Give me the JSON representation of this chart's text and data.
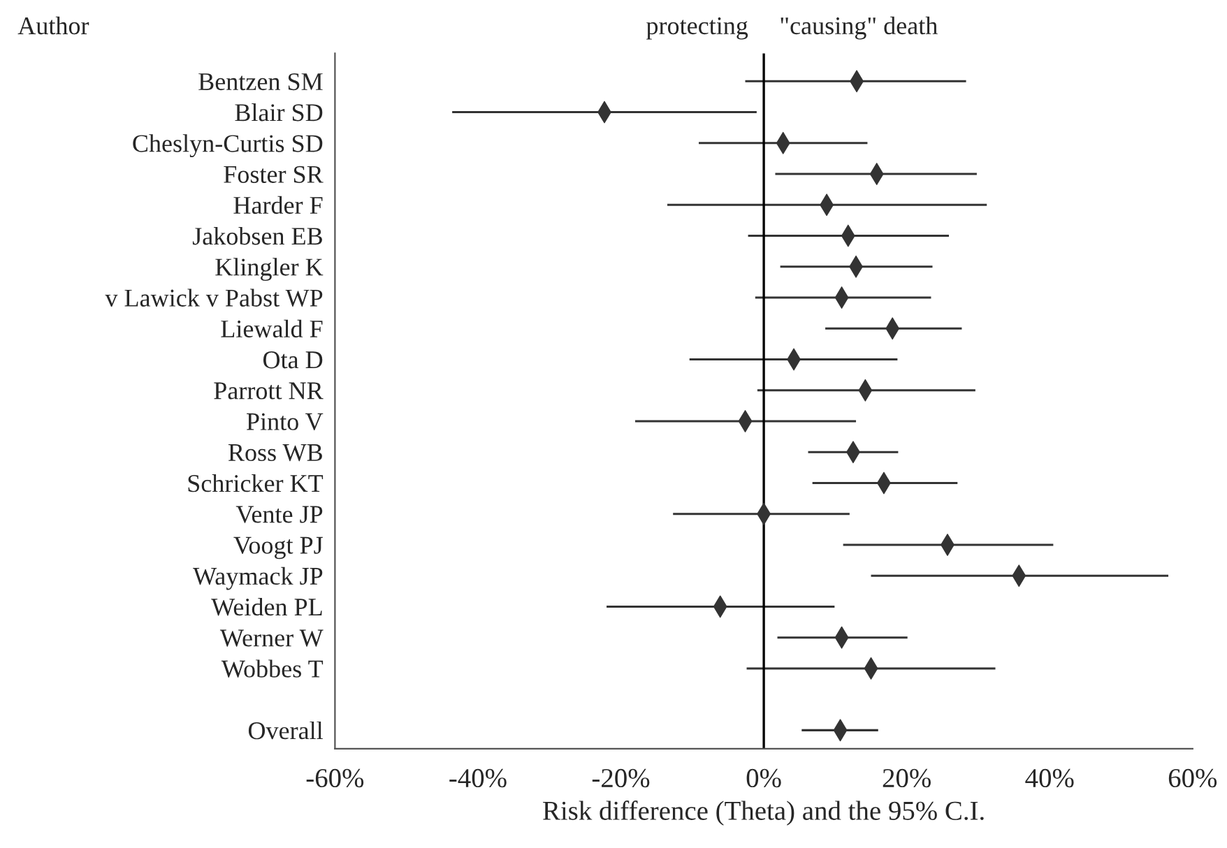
{
  "chart_data": {
    "type": "bar",
    "orientation": "horizontal",
    "xlabel": "Risk difference (Theta) and the 95% C.I.",
    "annotations": [
      "Author",
      "protecting",
      "\"causing\" death"
    ],
    "categories": [
      "Bentzen SM",
      "Blair SD",
      "Cheslyn-Curtis SD",
      "Foster SR",
      "Harder F",
      "Jakobsen EB",
      "Klingler K",
      "v Lawick v Pabst WP",
      "Liewald F",
      "Ota D",
      "Parrott NR",
      "Pinto V",
      "Ross WB",
      "Schricker KT",
      "Vente JP",
      "Voogt PJ",
      "Waymack JP",
      "Weiden PL",
      "Werner W",
      "Wobbes T",
      null,
      "Overall"
    ],
    "series": [
      {
        "color": "#333333",
        "base": [
          -2.6,
          -43.6,
          -9.1,
          1.6,
          -13.5,
          -2.2,
          2.3,
          -1.2,
          8.6,
          -10.4,
          -0.9,
          -18.0,
          6.2,
          6.8,
          -12.7,
          11.1,
          15.0,
          -22.0,
          1.9,
          -2.4,
          null,
          5.3
        ],
        "values": [
          30.9,
          42.6,
          23.6,
          28.2,
          44.7,
          28.1,
          21.3,
          24.6,
          19.1,
          29.1,
          30.5,
          30.9,
          12.6,
          20.3,
          24.7,
          29.4,
          41.6,
          31.9,
          18.2,
          34.8,
          null,
          10.7
        ]
      },
      {
        "type": "scatter",
        "color": "#333333",
        "x": [
          "Bentzen SM",
          "Blair SD",
          "Cheslyn-Curtis SD",
          "Foster SR",
          "Harder F",
          "Jakobsen EB",
          "Klingler K",
          "v Lawick v Pabst WP",
          "Liewald F",
          "Ota D",
          "Parrott NR",
          "Pinto V",
          "Ross WB",
          "Schricker KT",
          "Vente JP",
          "Voogt PJ",
          "Waymack JP",
          "Weiden PL",
          "Werner W",
          "Wobbes T",
          null,
          "Overall"
        ],
        "values": [
          13.0,
          -22.3,
          2.7,
          15.8,
          8.8,
          11.8,
          12.9,
          10.9,
          18.0,
          4.2,
          14.2,
          -2.6,
          12.5,
          16.8,
          0,
          25.7,
          35.7,
          -6.1,
          10.9,
          15.0,
          null,
          10.7
        ]
      }
    ],
    "xlim": [
      -60,
      60
    ],
    "xticks": [
      {
        "value": -60,
        "label": "-60%"
      },
      {
        "value": -40,
        "label": "-40%"
      },
      {
        "value": -20,
        "label": "-20%"
      },
      {
        "value": 0,
        "label": "0%"
      },
      {
        "value": 20,
        "label": "20%"
      },
      {
        "value": 40,
        "label": "40%"
      },
      {
        "value": 60,
        "label": "60%"
      }
    ],
    "ref_lines": [
      {
        "axis": "x",
        "value": 0,
        "color": "#000000",
        "line_style": "solid"
      }
    ],
    "grid": false,
    "legend": false
  }
}
